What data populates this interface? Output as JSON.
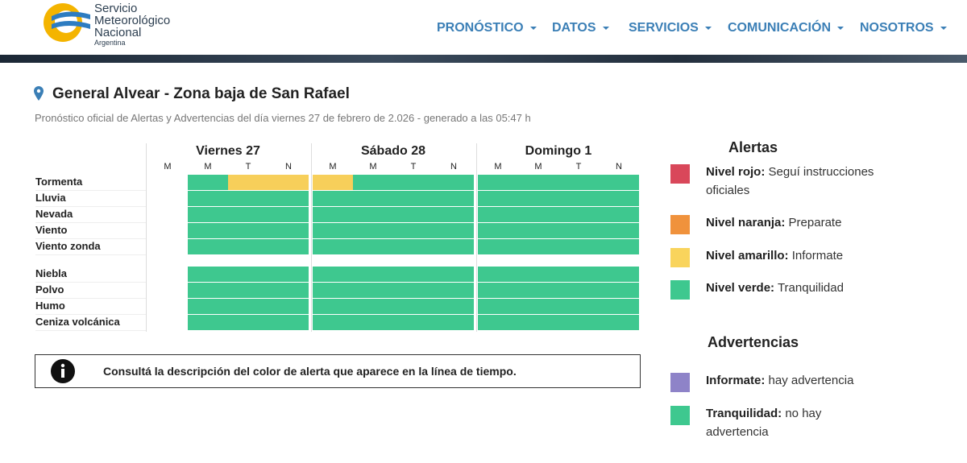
{
  "header": {
    "logo_lines": [
      "Servicio",
      "Meteorológico",
      "Nacional",
      "Argentina"
    ],
    "nav": [
      "PRONÓSTICO",
      "DATOS",
      "SERVICIOS",
      "COMUNICACIÓN",
      "NOSOTROS"
    ]
  },
  "location": {
    "title": "General Alvear - Zona baja de San Rafael",
    "subtitle": "Pronóstico oficial de Alertas y Advertencias del día viernes 27 de febrero de 2.026 - generado a las 05:47 h"
  },
  "table": {
    "days": [
      {
        "name": "Viernes 27",
        "slots": [
          "M",
          "M",
          "T",
          "N"
        ]
      },
      {
        "name": "Sábado 28",
        "slots": [
          "M",
          "M",
          "T",
          "N"
        ]
      },
      {
        "name": "Domingo 1",
        "slots": [
          "M",
          "M",
          "T",
          "N"
        ]
      }
    ],
    "groups": [
      [
        {
          "label": "Tormenta",
          "cells": [
            null,
            "#3ec88f",
            "#f7cf5a",
            "#f7cf5a",
            "#f7cf5a",
            "#3ec88f",
            "#3ec88f",
            "#3ec88f",
            "#3ec88f",
            "#3ec88f",
            "#3ec88f",
            "#3ec88f"
          ]
        },
        {
          "label": "Lluvia",
          "cells": [
            null,
            "#3ec88f",
            "#3ec88f",
            "#3ec88f",
            "#3ec88f",
            "#3ec88f",
            "#3ec88f",
            "#3ec88f",
            "#3ec88f",
            "#3ec88f",
            "#3ec88f",
            "#3ec88f"
          ]
        },
        {
          "label": "Nevada",
          "cells": [
            null,
            "#3ec88f",
            "#3ec88f",
            "#3ec88f",
            "#3ec88f",
            "#3ec88f",
            "#3ec88f",
            "#3ec88f",
            "#3ec88f",
            "#3ec88f",
            "#3ec88f",
            "#3ec88f"
          ]
        },
        {
          "label": "Viento",
          "cells": [
            null,
            "#3ec88f",
            "#3ec88f",
            "#3ec88f",
            "#3ec88f",
            "#3ec88f",
            "#3ec88f",
            "#3ec88f",
            "#3ec88f",
            "#3ec88f",
            "#3ec88f",
            "#3ec88f"
          ]
        },
        {
          "label": "Viento zonda",
          "cells": [
            null,
            "#3ec88f",
            "#3ec88f",
            "#3ec88f",
            "#3ec88f",
            "#3ec88f",
            "#3ec88f",
            "#3ec88f",
            "#3ec88f",
            "#3ec88f",
            "#3ec88f",
            "#3ec88f"
          ]
        }
      ],
      [
        {
          "label": "Niebla",
          "cells": [
            null,
            "#3ec88f",
            "#3ec88f",
            "#3ec88f",
            "#3ec88f",
            "#3ec88f",
            "#3ec88f",
            "#3ec88f",
            "#3ec88f",
            "#3ec88f",
            "#3ec88f",
            "#3ec88f"
          ]
        },
        {
          "label": "Polvo",
          "cells": [
            null,
            "#3ec88f",
            "#3ec88f",
            "#3ec88f",
            "#3ec88f",
            "#3ec88f",
            "#3ec88f",
            "#3ec88f",
            "#3ec88f",
            "#3ec88f",
            "#3ec88f",
            "#3ec88f"
          ]
        },
        {
          "label": "Humo",
          "cells": [
            null,
            "#3ec88f",
            "#3ec88f",
            "#3ec88f",
            "#3ec88f",
            "#3ec88f",
            "#3ec88f",
            "#3ec88f",
            "#3ec88f",
            "#3ec88f",
            "#3ec88f",
            "#3ec88f"
          ]
        },
        {
          "label": "Ceniza volcánica",
          "cells": [
            null,
            "#3ec88f",
            "#3ec88f",
            "#3ec88f",
            "#3ec88f",
            "#3ec88f",
            "#3ec88f",
            "#3ec88f",
            "#3ec88f",
            "#3ec88f",
            "#3ec88f",
            "#3ec88f"
          ]
        }
      ]
    ]
  },
  "info": "Consultá la descripción del color de alerta que aparece en la línea de tiempo.",
  "legend": {
    "alertas_title": "Alertas",
    "alertas": [
      {
        "color": "#d9475a",
        "bold": "Nivel rojo:",
        "text": "Seguí instrucciones oficiales"
      },
      {
        "color": "#f0923c",
        "bold": "Nivel naranja:",
        "text": "Preparate"
      },
      {
        "color": "#f9d45c",
        "bold": "Nivel amarillo:",
        "text": "Informate"
      },
      {
        "color": "#3ec88f",
        "bold": "Nivel verde:",
        "text": "Tranquilidad"
      }
    ],
    "advertencias_title": "Advertencias",
    "advertencias": [
      {
        "color": "#8e83c8",
        "bold": "Informate:",
        "text": "hay advertencia"
      },
      {
        "color": "#3ec88f",
        "bold": "Tranquilidad:",
        "text": "no hay advertencia"
      }
    ]
  }
}
